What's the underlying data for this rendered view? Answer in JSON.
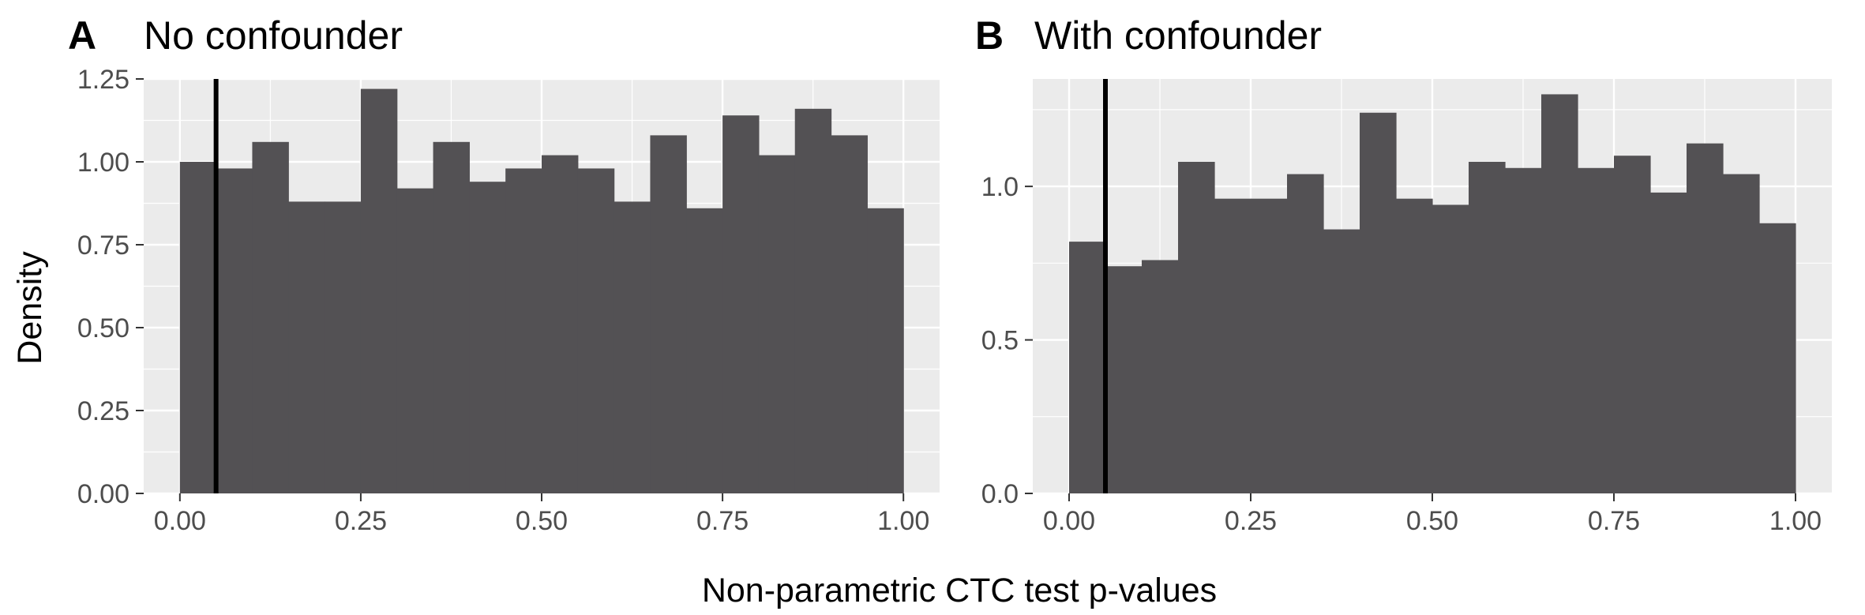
{
  "figure": {
    "ylabel": "Density",
    "xlabel": "Non-parametric CTC test p-values"
  },
  "panels": [
    {
      "tag": "A",
      "title": "No confounder"
    },
    {
      "tag": "B",
      "title": "With confounder"
    }
  ],
  "chart_data": [
    {
      "type": "bar",
      "title": "No confounder",
      "panel_tag": "A",
      "xlabel": "Non-parametric CTC test p-values",
      "ylabel": "Density",
      "xlim": [
        -0.05,
        1.05
      ],
      "ylim": [
        0,
        1.25
      ],
      "grid": true,
      "bin_width": 0.05,
      "x": [
        0.025,
        0.075,
        0.125,
        0.175,
        0.225,
        0.275,
        0.325,
        0.375,
        0.425,
        0.475,
        0.525,
        0.575,
        0.625,
        0.675,
        0.725,
        0.775,
        0.825,
        0.875,
        0.925,
        0.975
      ],
      "values": [
        1.0,
        0.98,
        1.06,
        0.88,
        0.88,
        1.22,
        0.92,
        1.06,
        0.94,
        0.98,
        1.02,
        0.98,
        0.88,
        1.08,
        0.86,
        1.14,
        1.02,
        1.16,
        1.08,
        0.86
      ],
      "vline": 0.05,
      "xticks": [
        "0.00",
        "0.25",
        "0.50",
        "0.75",
        "1.00"
      ],
      "xtick_values": [
        0,
        0.25,
        0.5,
        0.75,
        1.0
      ],
      "yticks": [
        "0.00",
        "0.25",
        "0.50",
        "0.75",
        "1.00",
        "1.25"
      ],
      "ytick_values": [
        0,
        0.25,
        0.5,
        0.75,
        1.0,
        1.25
      ],
      "bar_color": "#535154",
      "panel_bg": "#ebebeb",
      "vline_color": "#000000"
    },
    {
      "type": "bar",
      "title": "With confounder",
      "panel_tag": "B",
      "xlabel": "Non-parametric CTC test p-values",
      "ylabel": "Density",
      "xlim": [
        -0.05,
        1.05
      ],
      "ylim": [
        0,
        1.35
      ],
      "grid": true,
      "bin_width": 0.05,
      "x": [
        0.025,
        0.075,
        0.125,
        0.175,
        0.225,
        0.275,
        0.325,
        0.375,
        0.425,
        0.475,
        0.525,
        0.575,
        0.625,
        0.675,
        0.725,
        0.775,
        0.825,
        0.875,
        0.925,
        0.975
      ],
      "values": [
        0.82,
        0.74,
        0.76,
        1.08,
        0.96,
        0.96,
        1.04,
        0.86,
        1.24,
        0.96,
        0.94,
        1.08,
        1.06,
        1.3,
        1.06,
        1.1,
        0.98,
        1.14,
        1.04,
        0.88
      ],
      "vline": 0.05,
      "xticks": [
        "0.00",
        "0.25",
        "0.50",
        "0.75",
        "1.00"
      ],
      "xtick_values": [
        0,
        0.25,
        0.5,
        0.75,
        1.0
      ],
      "yticks": [
        "0.0",
        "0.5",
        "1.0"
      ],
      "ytick_values": [
        0,
        0.5,
        1.0
      ],
      "bar_color": "#535154",
      "panel_bg": "#ebebeb",
      "vline_color": "#000000"
    }
  ]
}
